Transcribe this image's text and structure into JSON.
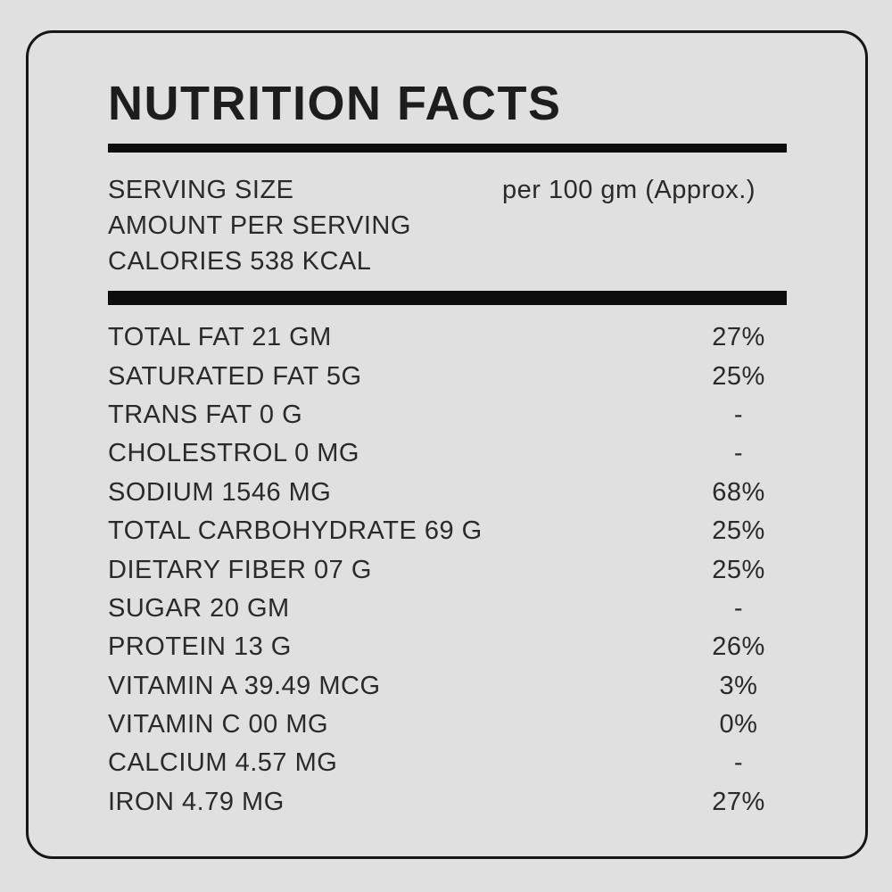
{
  "label": {
    "title": "NUTRITION FACTS",
    "serving": {
      "label": "SERVING SIZE",
      "value": "per 100 gm (Approx.)"
    },
    "amount_per_serving": "AMOUNT PER SERVING",
    "calories": "CALORIES 538 KCAL",
    "rows": [
      {
        "name": "TOTAL FAT 21 GM",
        "dv": "27%"
      },
      {
        "name": "SATURATED FAT 5G",
        "dv": "25%"
      },
      {
        "name": "TRANS FAT 0 G",
        "dv": "-"
      },
      {
        "name": "CHOLESTROL 0 MG",
        "dv": "-"
      },
      {
        "name": "SODIUM 1546 MG",
        "dv": "68%"
      },
      {
        "name": "TOTAL CARBOHYDRATE 69 G",
        "dv": "25%"
      },
      {
        "name": "DIETARY FIBER 07 G",
        "dv": "25%"
      },
      {
        "name": "SUGAR 20 GM",
        "dv": "-"
      },
      {
        "name": "PROTEIN 13 G",
        "dv": "26%"
      },
      {
        "name": "VITAMIN A 39.49 MCG",
        "dv": "3%"
      },
      {
        "name": "VITAMIN C 00 MG",
        "dv": "0%"
      },
      {
        "name": "CALCIUM 4.57 MG",
        "dv": "-"
      },
      {
        "name": "IRON 4.79 MG",
        "dv": "27%"
      }
    ],
    "colors": {
      "background": "#e0e0e0",
      "border": "#161616",
      "bar": "#0d0d0d",
      "title_text": "#1d1d1d",
      "body_text": "#2a2a2a"
    }
  }
}
